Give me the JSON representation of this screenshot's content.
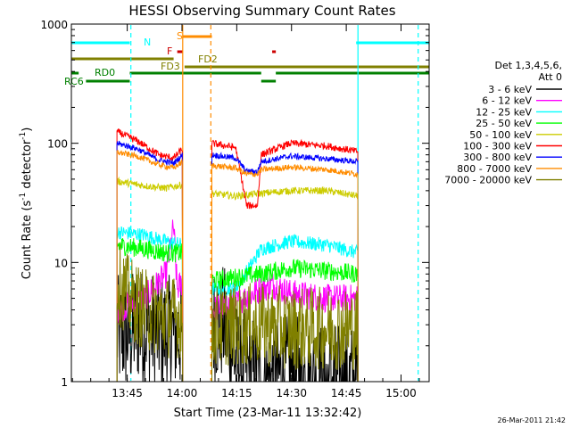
{
  "chart_data": {
    "type": "line",
    "title": "HESSI Observing Summary Count Rates",
    "xlabel": "Start Time (23-Mar-11 13:32:42)",
    "ylabel_main": "Count Rate (s",
    "ylabel_sup1": "-1",
    "ylabel_mid": " detector",
    "ylabel_sup2": "-1",
    "ylabel_end": ")",
    "y_scale": "log",
    "ylim": [
      1,
      1000
    ],
    "xlim_minutes": [
      0,
      98
    ],
    "x_ticks": [
      {
        "t": 15.3,
        "label": "13:45"
      },
      {
        "t": 30.3,
        "label": "14:00"
      },
      {
        "t": 45.3,
        "label": "14:15"
      },
      {
        "t": 60.3,
        "label": "14:30"
      },
      {
        "t": 75.3,
        "label": "14:45"
      },
      {
        "t": 90.3,
        "label": "15:00"
      }
    ],
    "y_ticks": [
      {
        "v": 1,
        "label": "1"
      },
      {
        "v": 10,
        "label": "10"
      },
      {
        "v": 100,
        "label": "100"
      },
      {
        "v": 1000,
        "label": "1000"
      }
    ],
    "legend_header": [
      "Det 1,3,4,5,6,",
      "Att 0"
    ],
    "legend_position": "right",
    "timestamp": "26-Mar-2011 21:42",
    "segments": [
      {
        "start": 12.5,
        "end": 30.5
      },
      {
        "start": 38.5,
        "end": 78.5
      }
    ],
    "series": [
      {
        "name": "3 - 6 keV",
        "color": "#000000",
        "levels": [
          [
            12.5,
            2.5
          ],
          [
            16,
            2.5
          ],
          [
            18,
            3.0
          ],
          [
            25,
            2.5
          ],
          [
            30.5,
            2.5
          ]
        ],
        "levels2": [
          [
            38.5,
            3.0
          ],
          [
            42,
            3.0
          ],
          [
            45,
            1.5
          ],
          [
            52,
            1.0
          ],
          [
            60,
            1.2
          ],
          [
            70,
            1.0
          ],
          [
            78.5,
            1.0
          ]
        ],
        "noise": 0.5
      },
      {
        "name": "6 - 12 keV",
        "color": "#ff00ff",
        "levels": [
          [
            12.5,
            4.0
          ],
          [
            20,
            5.0
          ],
          [
            26,
            8.0
          ],
          [
            28,
            20.0
          ],
          [
            29,
            6.0
          ],
          [
            30.5,
            7.0
          ]
        ],
        "levels2": [
          [
            38.5,
            4.0
          ],
          [
            45,
            4.5
          ],
          [
            52,
            6.0
          ],
          [
            55,
            6.5
          ],
          [
            60,
            5.5
          ],
          [
            70,
            5.0
          ],
          [
            78.5,
            5.0
          ]
        ],
        "noise": 0.12
      },
      {
        "name": "12 - 25 keV",
        "color": "#00ffff",
        "levels": [
          [
            12.5,
            18.0
          ],
          [
            20,
            17.0
          ],
          [
            26,
            15.0
          ],
          [
            30.5,
            14.0
          ]
        ],
        "levels2": [
          [
            38.5,
            6.0
          ],
          [
            45,
            6.0
          ],
          [
            52,
            13.0
          ],
          [
            60,
            15.0
          ],
          [
            70,
            14.0
          ],
          [
            78.5,
            12.0
          ]
        ],
        "noise": 0.06
      },
      {
        "name": "25 - 50 keV",
        "color": "#00ff00",
        "levels": [
          [
            12.5,
            14.0
          ],
          [
            20,
            13.0
          ],
          [
            26,
            12.0
          ],
          [
            30.5,
            12.0
          ]
        ],
        "levels2": [
          [
            38.5,
            7.0
          ],
          [
            45,
            7.5
          ],
          [
            52,
            8.0
          ],
          [
            60,
            9.0
          ],
          [
            70,
            8.5
          ],
          [
            78.5,
            8.0
          ]
        ],
        "noise": 0.08
      },
      {
        "name": "50 - 100 keV",
        "color": "#cccc00",
        "levels": [
          [
            12.5,
            48.0
          ],
          [
            20,
            44.0
          ],
          [
            26,
            42.0
          ],
          [
            30.5,
            45.0
          ]
        ],
        "levels2": [
          [
            38.5,
            38.0
          ],
          [
            45,
            36.0
          ],
          [
            52,
            38.0
          ],
          [
            60,
            40.0
          ],
          [
            70,
            40.0
          ],
          [
            78.5,
            36.0
          ]
        ],
        "noise": 0.03
      },
      {
        "name": "100 - 300 keV",
        "color": "#ff0000",
        "levels": [
          [
            12.5,
            125.0
          ],
          [
            18,
            105.0
          ],
          [
            24,
            80.0
          ],
          [
            28,
            75.0
          ],
          [
            30.5,
            90.0
          ]
        ],
        "levels2": [
          [
            38.5,
            100.0
          ],
          [
            45,
            92.0
          ],
          [
            48,
            30.0
          ],
          [
            51,
            30.0
          ],
          [
            52,
            80.0
          ],
          [
            60,
            100.0
          ],
          [
            70,
            95.0
          ],
          [
            78.5,
            85.0
          ]
        ],
        "noise": 0.03
      },
      {
        "name": "300 - 800 keV",
        "color": "#0000ff",
        "levels": [
          [
            12.5,
            100.0
          ],
          [
            18,
            90.0
          ],
          [
            24,
            72.0
          ],
          [
            28,
            68.0
          ],
          [
            30.5,
            80.0
          ]
        ],
        "levels2": [
          [
            38.5,
            80.0
          ],
          [
            45,
            75.0
          ],
          [
            48,
            58.0
          ],
          [
            51,
            58.0
          ],
          [
            52,
            70.0
          ],
          [
            60,
            78.0
          ],
          [
            70,
            74.0
          ],
          [
            78.5,
            70.0
          ]
        ],
        "noise": 0.025
      },
      {
        "name": "800 - 7000 keV",
        "color": "#ff8c00",
        "levels": [
          [
            12.5,
            84.0
          ],
          [
            18,
            78.0
          ],
          [
            24,
            66.0
          ],
          [
            28,
            62.0
          ],
          [
            30.5,
            70.0
          ]
        ],
        "levels2": [
          [
            38.5,
            65.0
          ],
          [
            45,
            62.0
          ],
          [
            48,
            55.0
          ],
          [
            51,
            55.0
          ],
          [
            52,
            60.0
          ],
          [
            60,
            63.0
          ],
          [
            70,
            60.0
          ],
          [
            78.5,
            55.0
          ]
        ],
        "noise": 0.025
      },
      {
        "name": "7000 - 20000 keV",
        "color": "#808000",
        "levels": [
          [
            12.5,
            7.0
          ],
          [
            16,
            5.0
          ],
          [
            20,
            4.0
          ],
          [
            26,
            3.5
          ],
          [
            30.5,
            3.5
          ]
        ],
        "levels2": [
          [
            38.5,
            3.0
          ],
          [
            45,
            3.0
          ],
          [
            52,
            3.0
          ],
          [
            60,
            2.8
          ],
          [
            70,
            2.8
          ],
          [
            78.5,
            2.8
          ]
        ],
        "noise": 0.35
      }
    ],
    "flag_bars": [
      {
        "label": "N",
        "color": "#00ffff",
        "ranges": [
          [
            0,
            16
          ],
          [
            78,
            98
          ]
        ],
        "level": "N"
      },
      {
        "label": "S",
        "color": "#ff8c00",
        "ranges": [
          [
            30.5,
            38.5
          ]
        ],
        "level": "S"
      },
      {
        "label": "F",
        "color": "#cc0000",
        "ranges": [
          [
            29,
            30.5
          ],
          [
            55,
            56
          ]
        ],
        "level": "F"
      },
      {
        "label": "FD2",
        "color": "#808000",
        "ranges": [
          [
            0,
            28
          ]
        ],
        "level": "FD2"
      },
      {
        "label": "FD3",
        "color": "#808000",
        "ranges": [
          [
            31,
            98
          ]
        ],
        "level": "FD3"
      },
      {
        "label": "RD0",
        "color": "#008000",
        "ranges": [
          [
            0,
            2
          ],
          [
            16,
            52
          ],
          [
            56,
            98
          ]
        ],
        "level": "RD0"
      },
      {
        "label": "RC6",
        "color": "#008000",
        "ranges": [
          [
            4,
            16
          ],
          [
            52,
            56
          ]
        ],
        "level": "RC6"
      }
    ],
    "vlines": [
      {
        "t": 16.3,
        "color": "#00ffff",
        "style": "dashed"
      },
      {
        "t": 78.5,
        "color": "#00ffff",
        "style": "solid"
      },
      {
        "t": 95,
        "color": "#00ffff",
        "style": "dashed"
      },
      {
        "t": 30.5,
        "color": "#ff8c00",
        "style": "solid"
      },
      {
        "t": 38.2,
        "color": "#ff8c00",
        "style": "dashed"
      }
    ]
  }
}
